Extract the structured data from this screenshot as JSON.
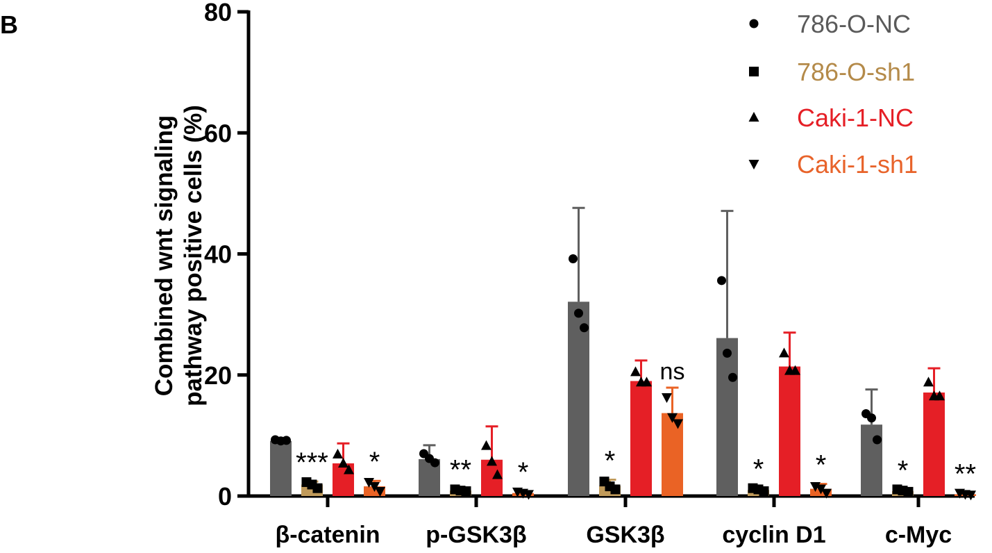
{
  "panel_label": "B",
  "chart_data": {
    "type": "bar",
    "title": "",
    "xlabel": "",
    "ylabel": [
      "Combined wnt signaling",
      "pathway positive cells (%)"
    ],
    "ylim": [
      0,
      80
    ],
    "yticks": [
      0,
      20,
      40,
      60,
      80
    ],
    "grid": false,
    "legend_position": "top-right",
    "categories": [
      "β-catenin",
      "p-GSK3β",
      "GSK3β",
      "cyclin D1",
      "c-Myc"
    ],
    "series": [
      {
        "name": "786-O-NC",
        "color": "#5f5f5f",
        "text_color": "#5a5a5a",
        "marker": "circle",
        "values": [
          9.1,
          6.1,
          32.1,
          26.1,
          11.8
        ],
        "error": [
          0.5,
          2.3,
          15.5,
          21.0,
          5.8
        ],
        "points": [
          [
            9.3,
            9.1,
            9.2
          ],
          [
            7.0,
            6.2,
            5.5
          ],
          [
            39.2,
            30.2,
            27.8
          ],
          [
            35.6,
            23.6,
            19.6
          ],
          [
            13.6,
            12.9,
            9.3
          ]
        ]
      },
      {
        "name": "786-O-sh1",
        "color": "#c09a5a",
        "text_color": "#b48a49",
        "marker": "square",
        "values": [
          1.9,
          0.9,
          1.7,
          1.0,
          0.8
        ],
        "error": [
          0.5,
          0.3,
          1.0,
          0.3,
          0.3
        ],
        "points": [
          [
            2.3,
            1.9,
            1.3
          ],
          [
            1.1,
            0.9,
            0.8
          ],
          [
            2.4,
            1.6,
            1.1
          ],
          [
            1.3,
            1.1,
            0.8
          ],
          [
            1.1,
            0.9,
            0.7
          ]
        ],
        "significance": [
          "***",
          "**",
          "*",
          "*",
          "*"
        ]
      },
      {
        "name": "Caki-1-NC",
        "color": "#e51f26",
        "text_color": "#e51f26",
        "marker": "triangle-up",
        "values": [
          5.4,
          6.0,
          19.0,
          21.4,
          17.1
        ],
        "error": [
          3.3,
          5.5,
          3.4,
          5.6,
          4.0
        ],
        "points": [
          [
            6.9,
            5.4,
            4.3
          ],
          [
            8.3,
            5.7,
            3.5
          ],
          [
            20.5,
            18.8,
            18.8
          ],
          [
            23.6,
            20.7,
            20.7
          ],
          [
            18.8,
            16.5,
            16.5
          ]
        ]
      },
      {
        "name": "Caki-1-sh1",
        "color": "#ea6325",
        "text_color": "#e8632a",
        "marker": "triangle-down",
        "values": [
          1.6,
          0.5,
          13.7,
          1.2,
          0.3
        ],
        "error": [
          0.9,
          0.3,
          4.2,
          0.8,
          0.2
        ],
        "points": [
          [
            2.3,
            1.6,
            0.8
          ],
          [
            0.7,
            0.5,
            0.3
          ],
          [
            16.3,
            13.0,
            12.0
          ],
          [
            1.6,
            1.2,
            0.5
          ],
          [
            0.5,
            0.3,
            0.2
          ]
        ],
        "significance": [
          "*",
          "*",
          "ns",
          "*",
          "**"
        ]
      }
    ]
  }
}
